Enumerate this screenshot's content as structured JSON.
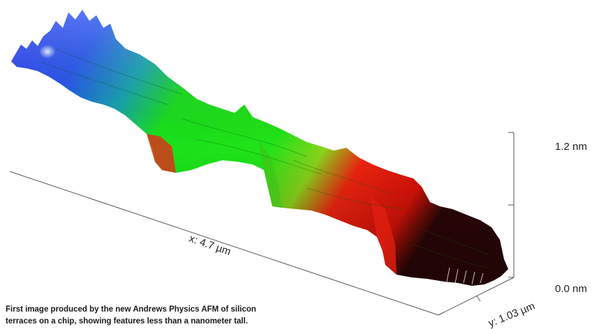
{
  "figure": {
    "x_axis_label": "x: 4.7 µm",
    "y_axis_label": "y: 1.03 µm",
    "z_tick_max": "1.2 nm",
    "z_tick_min": "0.0 nm"
  },
  "caption": {
    "line1": "First image produced by the new Andrews Physics AFM of silicon",
    "line2": "terraces on a chip, showing features less than a nanometer tall."
  },
  "colors": {
    "high": "#1f3cf0",
    "mid": "#17e81f",
    "low": "#f01a08",
    "lowest": "#2a0505"
  }
}
